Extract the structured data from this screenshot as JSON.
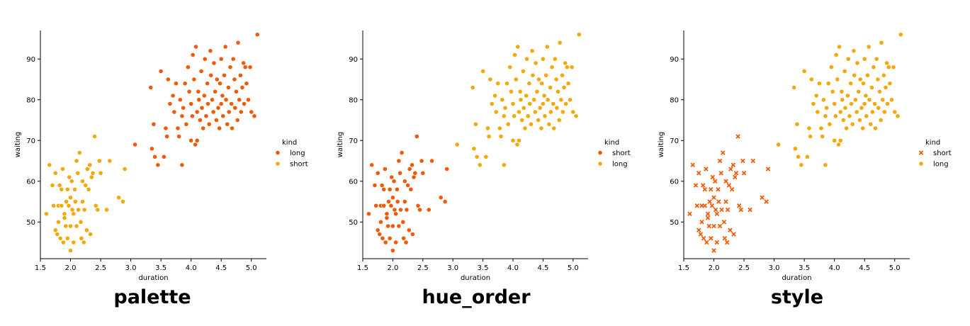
{
  "chart_data": [
    {
      "type": "scatter",
      "caption": "palette",
      "xlabel": "duration",
      "ylabel": "waiting",
      "xlim": [
        1.5,
        5.25
      ],
      "ylim": [
        41,
        97
      ],
      "xticks": [
        "1.5",
        "2.0",
        "2.5",
        "3.0",
        "3.5",
        "4.0",
        "4.5",
        "5.0"
      ],
      "yticks": [
        "50",
        "60",
        "70",
        "80",
        "90"
      ],
      "legend": {
        "title": "kind",
        "placement": "right",
        "entries": [
          {
            "label": "long",
            "color": "#f15a08",
            "marker": "circle"
          },
          {
            "label": "short",
            "color": "#f5a80b",
            "marker": "circle"
          }
        ]
      },
      "series_colors": {
        "long": "#f15a08",
        "short": "#f5a80b"
      },
      "series_markers": {
        "long": "circle",
        "short": "circle"
      }
    },
    {
      "type": "scatter",
      "caption": "hue_order",
      "xlabel": "duration",
      "ylabel": "waiting",
      "xlim": [
        1.5,
        5.25
      ],
      "ylim": [
        41,
        97
      ],
      "xticks": [
        "1.5",
        "2.0",
        "2.5",
        "3.0",
        "3.5",
        "4.0",
        "4.5",
        "5.0"
      ],
      "yticks": [
        "50",
        "60",
        "70",
        "80",
        "90"
      ],
      "legend": {
        "title": "kind",
        "placement": "right",
        "entries": [
          {
            "label": "short",
            "color": "#f15a08",
            "marker": "circle"
          },
          {
            "label": "long",
            "color": "#f5a80b",
            "marker": "circle"
          }
        ]
      },
      "series_colors": {
        "long": "#f5a80b",
        "short": "#f15a08"
      },
      "series_markers": {
        "long": "circle",
        "short": "circle"
      }
    },
    {
      "type": "scatter",
      "caption": "style",
      "xlabel": "duration",
      "ylabel": "waiting",
      "xlim": [
        1.5,
        5.25
      ],
      "ylim": [
        41,
        97
      ],
      "xticks": [
        "1.5",
        "2.0",
        "2.5",
        "3.0",
        "3.5",
        "4.0",
        "4.5",
        "5.0"
      ],
      "yticks": [
        "50",
        "60",
        "70",
        "80",
        "90"
      ],
      "legend": {
        "title": "kind",
        "placement": "right",
        "entries": [
          {
            "label": "short",
            "color": "#f15a08",
            "marker": "x"
          },
          {
            "label": "long",
            "color": "#f5a80b",
            "marker": "circle"
          }
        ]
      },
      "series_colors": {
        "long": "#f5a80b",
        "short": "#f15a08"
      },
      "series_markers": {
        "long": "circle",
        "short": "x"
      }
    }
  ],
  "series": [
    {
      "name": "short",
      "points": [
        [
          1.6,
          52
        ],
        [
          1.65,
          64
        ],
        [
          1.7,
          59
        ],
        [
          1.72,
          54
        ],
        [
          1.75,
          48
        ],
        [
          1.75,
          62
        ],
        [
          1.78,
          47
        ],
        [
          1.8,
          54
        ],
        [
          1.8,
          50
        ],
        [
          1.82,
          59
        ],
        [
          1.83,
          46
        ],
        [
          1.85,
          58
        ],
        [
          1.85,
          54
        ],
        [
          1.87,
          63
        ],
        [
          1.88,
          45
        ],
        [
          1.9,
          52
        ],
        [
          1.9,
          51
        ],
        [
          1.92,
          49
        ],
        [
          1.93,
          55
        ],
        [
          1.95,
          58
        ],
        [
          1.95,
          46
        ],
        [
          1.97,
          54
        ],
        [
          1.98,
          61
        ],
        [
          2.0,
          56
        ],
        [
          2.0,
          49
        ],
        [
          2.0,
          43
        ],
        [
          2.02,
          60
        ],
        [
          2.03,
          53
        ],
        [
          2.05,
          52
        ],
        [
          2.05,
          45
        ],
        [
          2.07,
          58
        ],
        [
          2.08,
          55
        ],
        [
          2.1,
          49
        ],
        [
          2.1,
          65
        ],
        [
          2.12,
          62
        ],
        [
          2.13,
          53
        ],
        [
          2.15,
          67
        ],
        [
          2.17,
          50
        ],
        [
          2.18,
          46
        ],
        [
          2.2,
          60
        ],
        [
          2.2,
          55
        ],
        [
          2.22,
          45
        ],
        [
          2.23,
          53
        ],
        [
          2.25,
          59
        ],
        [
          2.27,
          48
        ],
        [
          2.28,
          63
        ],
        [
          2.3,
          58
        ],
        [
          2.32,
          64
        ],
        [
          2.33,
          47
        ],
        [
          2.35,
          61
        ],
        [
          2.37,
          62
        ],
        [
          2.4,
          71
        ],
        [
          2.42,
          54
        ],
        [
          2.45,
          53
        ],
        [
          2.48,
          65
        ],
        [
          2.5,
          62
        ],
        [
          2.6,
          53
        ],
        [
          2.65,
          65
        ],
        [
          2.8,
          56
        ],
        [
          2.87,
          55
        ],
        [
          2.9,
          63
        ]
      ]
    },
    {
      "name": "long",
      "points": [
        [
          3.07,
          69
        ],
        [
          3.33,
          83
        ],
        [
          3.35,
          68
        ],
        [
          3.38,
          74
        ],
        [
          3.4,
          66
        ],
        [
          3.45,
          64
        ],
        [
          3.5,
          87
        ],
        [
          3.55,
          66
        ],
        [
          3.58,
          73
        ],
        [
          3.6,
          71
        ],
        [
          3.62,
          85
        ],
        [
          3.65,
          79
        ],
        [
          3.7,
          81
        ],
        [
          3.72,
          77
        ],
        [
          3.75,
          84
        ],
        [
          3.78,
          73
        ],
        [
          3.8,
          71
        ],
        [
          3.82,
          80
        ],
        [
          3.85,
          64
        ],
        [
          3.85,
          76
        ],
        [
          3.87,
          78
        ],
        [
          3.9,
          84
        ],
        [
          3.92,
          74
        ],
        [
          3.95,
          88
        ],
        [
          3.97,
          82
        ],
        [
          4.0,
          79
        ],
        [
          4.0,
          70
        ],
        [
          4.02,
          76
        ],
        [
          4.03,
          91
        ],
        [
          4.05,
          85
        ],
        [
          4.07,
          69
        ],
        [
          4.08,
          93
        ],
        [
          4.1,
          77
        ],
        [
          4.1,
          70
        ],
        [
          4.12,
          82
        ],
        [
          4.13,
          80
        ],
        [
          4.15,
          75
        ],
        [
          4.17,
          87
        ],
        [
          4.18,
          78
        ],
        [
          4.2,
          73
        ],
        [
          4.22,
          81
        ],
        [
          4.23,
          90
        ],
        [
          4.25,
          76
        ],
        [
          4.27,
          84
        ],
        [
          4.28,
          79
        ],
        [
          4.3,
          74
        ],
        [
          4.32,
          92
        ],
        [
          4.33,
          86
        ],
        [
          4.35,
          80
        ],
        [
          4.37,
          77
        ],
        [
          4.38,
          89
        ],
        [
          4.4,
          82
        ],
        [
          4.42,
          75
        ],
        [
          4.43,
          85
        ],
        [
          4.45,
          78
        ],
        [
          4.47,
          73
        ],
        [
          4.48,
          84
        ],
        [
          4.5,
          79
        ],
        [
          4.5,
          90
        ],
        [
          4.52,
          81
        ],
        [
          4.53,
          76
        ],
        [
          4.55,
          86
        ],
        [
          4.57,
          93
        ],
        [
          4.58,
          80
        ],
        [
          4.6,
          74
        ],
        [
          4.62,
          83
        ],
        [
          4.63,
          77
        ],
        [
          4.65,
          88
        ],
        [
          4.67,
          79
        ],
        [
          4.68,
          73
        ],
        [
          4.7,
          90
        ],
        [
          4.72,
          85
        ],
        [
          4.73,
          78
        ],
        [
          4.75,
          82
        ],
        [
          4.77,
          75
        ],
        [
          4.78,
          94
        ],
        [
          4.8,
          80
        ],
        [
          4.82,
          86
        ],
        [
          4.83,
          77
        ],
        [
          4.85,
          83
        ],
        [
          4.87,
          89
        ],
        [
          4.88,
          79
        ],
        [
          4.9,
          88
        ],
        [
          4.92,
          84
        ],
        [
          4.95,
          80
        ],
        [
          4.98,
          88
        ],
        [
          5.0,
          77
        ],
        [
          5.05,
          76
        ],
        [
          5.1,
          96
        ]
      ]
    }
  ]
}
